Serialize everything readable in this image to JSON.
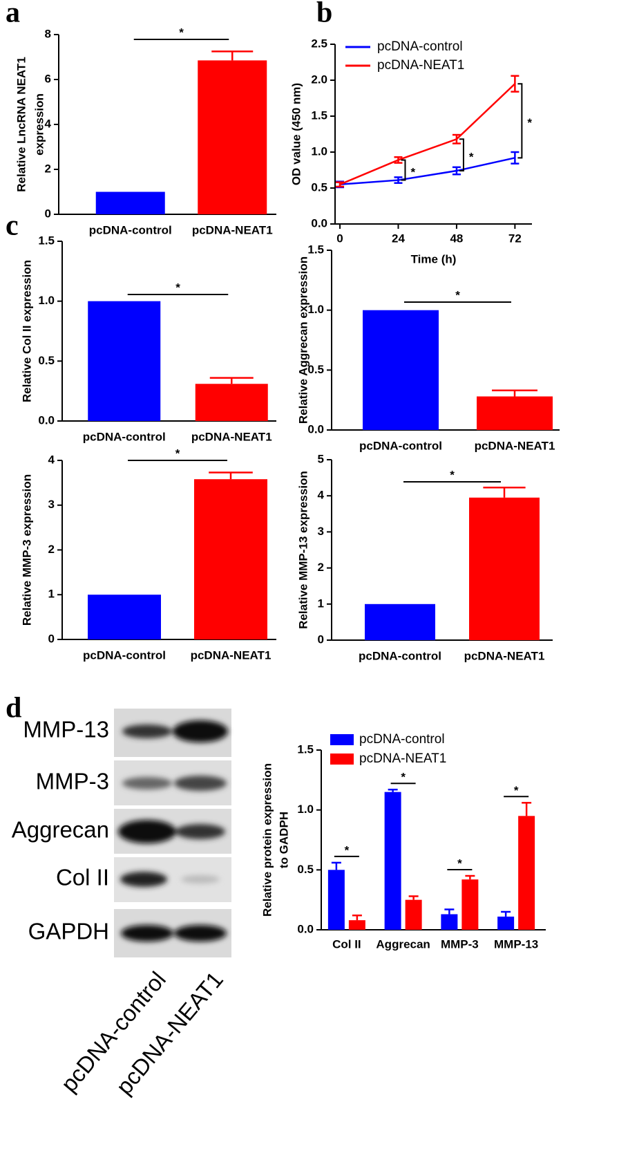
{
  "chart_data": [
    {
      "type": "bar",
      "panel": "a",
      "ylabel": [
        "Relative LncRNA NEAT1",
        "expression"
      ],
      "categories": [
        "pcDNA-control",
        "pcDNA-NEAT1"
      ],
      "values": [
        1,
        6.85
      ],
      "errors": [
        null,
        0.4
      ],
      "colors": [
        "#0000ff",
        "#ff0000"
      ],
      "ylim": [
        0,
        8
      ],
      "yticks": [
        0,
        2,
        4,
        6,
        8
      ],
      "annotations": [
        "*"
      ]
    },
    {
      "type": "line",
      "panel": "b",
      "xlabel": "Time (h)",
      "ylabel": "OD value (450 nm)",
      "x": [
        0,
        24,
        48,
        72
      ],
      "xlim": [
        -2,
        79
      ],
      "xticks": [
        0,
        24,
        48,
        72
      ],
      "ylim": [
        0,
        2.5
      ],
      "yticks": [
        {
          "value": 0,
          "label": "0.0"
        },
        0.5,
        {
          "value": 1,
          "label": "1.0"
        },
        1.5,
        {
          "value": 2,
          "label": "2.0"
        },
        2.5
      ],
      "series": [
        {
          "name": "pcDNA-control",
          "color": "#0000ff",
          "values": [
            0.55,
            0.61,
            0.74,
            0.92
          ],
          "errors": [
            0.04,
            0.04,
            0.05,
            0.08
          ]
        },
        {
          "name": "pcDNA-NEAT1",
          "color": "#ff0000",
          "values": [
            0.55,
            0.89,
            1.18,
            1.95
          ],
          "errors": [
            0.03,
            0.04,
            0.06,
            0.11
          ]
        }
      ],
      "annotations": [
        null,
        "*",
        "*",
        "*"
      ]
    },
    {
      "type": "bar",
      "panel": "c",
      "ylabel": "Relative Col II expression",
      "categories": [
        "pcDNA-control",
        "pcDNA-NEAT1"
      ],
      "values": [
        1,
        0.31
      ],
      "errors": [
        null,
        0.05
      ],
      "colors": [
        "#0000ff",
        "#ff0000"
      ],
      "ylim": [
        0,
        1.5
      ],
      "yticks": [
        {
          "value": 0,
          "label": "0.0"
        },
        0.5,
        {
          "value": 1,
          "label": "1.0"
        },
        1.5
      ],
      "annotations": [
        "*"
      ]
    },
    {
      "type": "bar",
      "ylabel": "Relative Aggrecan expression",
      "categories": [
        "pcDNA-control",
        "pcDNA-NEAT1"
      ],
      "values": [
        1,
        0.28
      ],
      "errors": [
        null,
        0.05
      ],
      "colors": [
        "#0000ff",
        "#ff0000"
      ],
      "ylim": [
        0,
        1.5
      ],
      "yticks": [
        {
          "value": 0,
          "label": "0.0"
        },
        0.5,
        {
          "value": 1,
          "label": "1.0"
        },
        1.5
      ],
      "annotations": [
        "*"
      ]
    },
    {
      "type": "bar",
      "ylabel": "Relative MMP-3 expression",
      "categories": [
        "pcDNA-control",
        "pcDNA-NEAT1"
      ],
      "values": [
        1,
        3.58
      ],
      "errors": [
        null,
        0.15
      ],
      "colors": [
        "#0000ff",
        "#ff0000"
      ],
      "ylim": [
        0,
        4
      ],
      "yticks": [
        0,
        1,
        2,
        3,
        4
      ],
      "annotations": [
        "*"
      ]
    },
    {
      "type": "bar",
      "ylabel": "Relative MMP-13 expression",
      "categories": [
        "pcDNA-control",
        "pcDNA-NEAT1"
      ],
      "values": [
        1,
        3.95
      ],
      "errors": [
        null,
        0.28
      ],
      "colors": [
        "#0000ff",
        "#ff0000"
      ],
      "ylim": [
        0,
        5
      ],
      "yticks": [
        0,
        1,
        2,
        3,
        4,
        5
      ],
      "annotations": [
        "*"
      ]
    },
    {
      "type": "grouped_bar",
      "ylabel": [
        "Relative protein expression",
        "to GADPH"
      ],
      "categories": [
        "Col II",
        "Aggrecan",
        "MMP-3",
        "MMP-13"
      ],
      "ylim": [
        0,
        1.5
      ],
      "yticks": [
        {
          "value": 0,
          "label": "0.0"
        },
        0.5,
        {
          "value": 1,
          "label": "1.0"
        },
        1.5
      ],
      "series": [
        {
          "name": "pcDNA-control",
          "color": "#0000ff",
          "values": [
            0.5,
            1.15,
            0.13,
            0.11
          ],
          "errors": [
            0.06,
            0.02,
            0.04,
            0.04
          ]
        },
        {
          "name": "pcDNA-NEAT1",
          "color": "#ff0000",
          "values": [
            0.08,
            0.25,
            0.42,
            0.95
          ],
          "errors": [
            0.04,
            0.03,
            0.03,
            0.11
          ]
        }
      ],
      "annotations": [
        "*",
        "*",
        "*",
        "*"
      ]
    }
  ],
  "blot": {
    "panel": "d",
    "rows": [
      "MMP-13",
      "MMP-3",
      "Aggrecan",
      "Col II",
      "GAPDH"
    ],
    "lanes": [
      "pcDNA-control",
      "pcDNA-NEAT1"
    ]
  }
}
